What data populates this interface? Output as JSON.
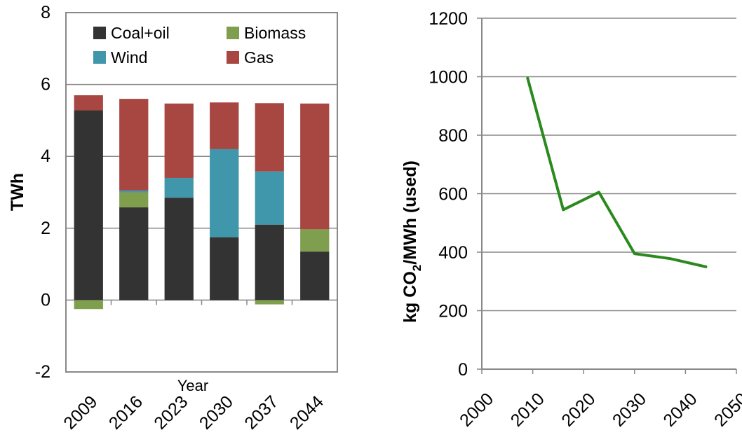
{
  "chart_data": [
    {
      "type": "bar",
      "stacked": true,
      "xlabel": "Year",
      "ylabel": "TWh",
      "ylim": [
        -2,
        8
      ],
      "yticks": [
        -2,
        0,
        2,
        4,
        6,
        8
      ],
      "categories": [
        "2009",
        "2016",
        "2023",
        "2030",
        "2037",
        "2044"
      ],
      "grid": true,
      "legend_position": "top",
      "series": [
        {
          "name": "Coal+oil",
          "color": "#333333",
          "values": [
            5.28,
            2.58,
            2.85,
            1.75,
            2.1,
            1.35
          ]
        },
        {
          "name": "Biomass",
          "color": "#7f9f4f",
          "values": [
            -0.25,
            0.42,
            0.0,
            0.0,
            -0.12,
            0.62
          ]
        },
        {
          "name": "Wind",
          "color": "#4096aa",
          "values": [
            0.0,
            0.05,
            0.55,
            2.45,
            1.48,
            0.0
          ]
        },
        {
          "name": "Gas",
          "color": "#a84642",
          "values": [
            0.42,
            2.55,
            2.07,
            1.3,
            1.9,
            3.5
          ]
        }
      ]
    },
    {
      "type": "line",
      "xlabel": "",
      "ylabel_parts": [
        "kg CO",
        "2",
        "/MWh (used)"
      ],
      "xlim": [
        2000,
        2050
      ],
      "ylim": [
        0,
        1200
      ],
      "xticks": [
        2000,
        2010,
        2020,
        2030,
        2040,
        2050
      ],
      "yticks": [
        0,
        200,
        400,
        600,
        800,
        1000,
        1200
      ],
      "grid": true,
      "series": [
        {
          "color": "#2a8a1e",
          "x": [
            2009,
            2016,
            2023,
            2030,
            2037,
            2044
          ],
          "y": [
            995,
            545,
            605,
            395,
            378,
            350
          ]
        }
      ]
    }
  ]
}
